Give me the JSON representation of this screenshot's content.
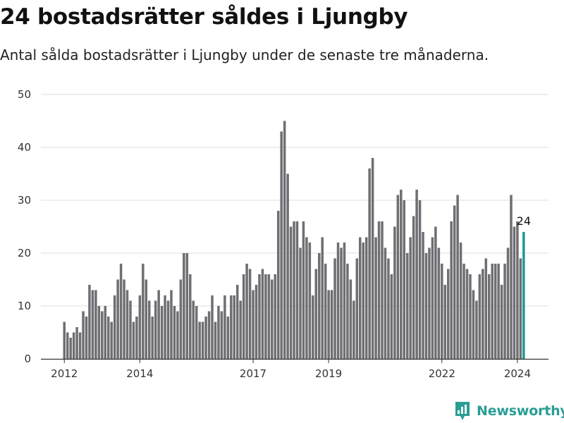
{
  "header": {
    "title": "24 bostadsrätter såldes i Ljungby",
    "subtitle": "Antal sålda bostadsrätter i Ljungby under de senaste tre månaderna."
  },
  "brand": {
    "name": "Newsworthy",
    "icon": "newsworthy-logo-icon",
    "color": "#2a9d95"
  },
  "colors": {
    "bar": "#6e6e73",
    "highlight": "#1a9a96",
    "grid": "#dddddd",
    "axis": "#333333"
  },
  "chart_data": {
    "type": "bar",
    "title": "24 bostadsrätter såldes i Ljungby",
    "subtitle": "Antal sålda bostadsrätter i Ljungby under de senaste tre månaderna.",
    "xlabel": "",
    "ylabel": "",
    "ylim": [
      0,
      50
    ],
    "yticks": [
      0,
      10,
      20,
      30,
      40,
      50
    ],
    "xticks": [
      "2012",
      "2014",
      "2017",
      "2019",
      "2022",
      "2024"
    ],
    "grid": true,
    "last_value_label": "24",
    "start": "2012-01",
    "frequency": "monthly",
    "series": [
      {
        "values": [
          7,
          5,
          4,
          5,
          6,
          5,
          9,
          8,
          14,
          13,
          13,
          10,
          9,
          10,
          8,
          7,
          12,
          15,
          18,
          15,
          13,
          11,
          7,
          8,
          12,
          18,
          15,
          11,
          8,
          11,
          13,
          10,
          12,
          11,
          13,
          10,
          9,
          15,
          20,
          20,
          16,
          11,
          10,
          7,
          7,
          8,
          9,
          12,
          7,
          10,
          9,
          12,
          8,
          12,
          12,
          14,
          11,
          16,
          18,
          17,
          13,
          14,
          16,
          17,
          16,
          16,
          15,
          16,
          28,
          43,
          45,
          35,
          25,
          26,
          26,
          21,
          26,
          23,
          22,
          12,
          17,
          20,
          23,
          18,
          13,
          13,
          19,
          22,
          21,
          22,
          18,
          15,
          11,
          19,
          23,
          22,
          23,
          36,
          38,
          23,
          26,
          26,
          21,
          19,
          16,
          25,
          31,
          32,
          30,
          20,
          23,
          27,
          32,
          30,
          24,
          20,
          21,
          23,
          25,
          21,
          18,
          14,
          17,
          26,
          29,
          31,
          22,
          18,
          17,
          16,
          13,
          11,
          16,
          17,
          19,
          16,
          18,
          18,
          18,
          14,
          18,
          21,
          31,
          25,
          26,
          19,
          24
        ]
      }
    ]
  }
}
